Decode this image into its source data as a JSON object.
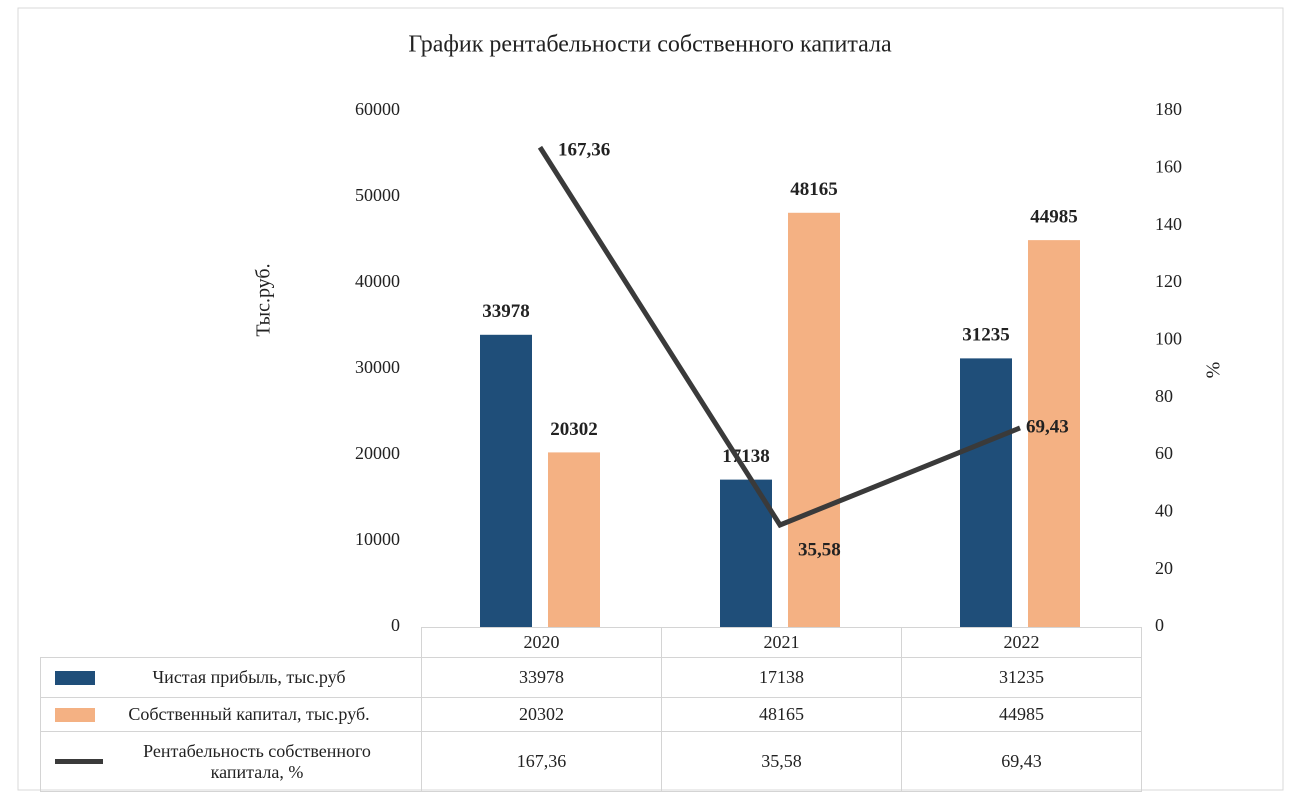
{
  "chart_data": {
    "type": "bar",
    "title": "График рентабельности собственного капитала",
    "ylabel": "Тыс.руб.",
    "y2label": "%",
    "categories": [
      "2020",
      "2021",
      "2022"
    ],
    "series": [
      {
        "name": "Чистая прибыль, тыс.руб",
        "color": "#1f4e79",
        "type": "bar",
        "values": [
          33978,
          17138,
          31235
        ]
      },
      {
        "name": "Собственный капитал, тыс.руб.",
        "color": "#f4b183",
        "type": "bar",
        "values": [
          20302,
          48165,
          44985
        ]
      },
      {
        "name": "Рентабельность собственного капитала, %",
        "color": "#3a3a3a",
        "type": "line",
        "axis": "y2",
        "values": [
          167.36,
          35.58,
          69.43
        ],
        "value_labels": [
          "167,36",
          "35,58",
          "69,43"
        ]
      }
    ],
    "ylim": [
      0,
      60000
    ],
    "yticks": [
      0,
      10000,
      20000,
      30000,
      40000,
      50000,
      60000
    ],
    "y2lim": [
      0,
      180
    ],
    "y2ticks": [
      0,
      20,
      40,
      60,
      80,
      100,
      120,
      140,
      160,
      180
    ],
    "grid": false,
    "data_table": true
  }
}
